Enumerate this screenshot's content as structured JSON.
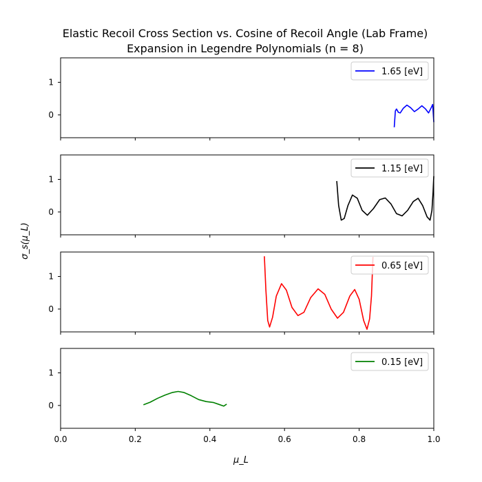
{
  "chart_data": {
    "type": "line",
    "title": [
      "Elastic Recoil Cross Section vs. Cosine of Recoil Angle (Lab Frame)",
      "Expansion in Legendre Polynomials (n = 8)"
    ],
    "xlabel": "μ_L",
    "ylabel": "σ_s(μ_L)",
    "xlim": [
      0.0,
      1.0
    ],
    "ylim": [
      -0.7,
      1.75
    ],
    "x_ticks": [
      "0.0",
      "0.2",
      "0.4",
      "0.6",
      "0.8",
      "1.0"
    ],
    "y_ticks": [
      "0",
      "1"
    ],
    "legend_placement": "upper right",
    "grid": false,
    "panels": [
      {
        "name": "1.65 [eV]",
        "color": "#0000ff",
        "points": [
          [
            0.894,
            -0.38
          ],
          [
            0.897,
            0.12
          ],
          [
            0.9,
            0.18
          ],
          [
            0.905,
            0.08
          ],
          [
            0.91,
            0.06
          ],
          [
            0.918,
            0.2
          ],
          [
            0.928,
            0.3
          ],
          [
            0.938,
            0.22
          ],
          [
            0.948,
            0.1
          ],
          [
            0.958,
            0.18
          ],
          [
            0.968,
            0.28
          ],
          [
            0.978,
            0.18
          ],
          [
            0.986,
            0.06
          ],
          [
            0.993,
            0.22
          ],
          [
            0.997,
            0.32
          ],
          [
            1.0,
            -0.22
          ]
        ]
      },
      {
        "name": "1.15 [eV]",
        "color": "#000000",
        "points": [
          [
            0.74,
            0.95
          ],
          [
            0.745,
            0.2
          ],
          [
            0.752,
            -0.25
          ],
          [
            0.76,
            -0.2
          ],
          [
            0.77,
            0.2
          ],
          [
            0.782,
            0.52
          ],
          [
            0.795,
            0.42
          ],
          [
            0.808,
            0.05
          ],
          [
            0.822,
            -0.1
          ],
          [
            0.838,
            0.1
          ],
          [
            0.855,
            0.38
          ],
          [
            0.87,
            0.43
          ],
          [
            0.885,
            0.25
          ],
          [
            0.9,
            -0.05
          ],
          [
            0.915,
            -0.12
          ],
          [
            0.93,
            0.05
          ],
          [
            0.945,
            0.32
          ],
          [
            0.958,
            0.42
          ],
          [
            0.97,
            0.2
          ],
          [
            0.982,
            -0.15
          ],
          [
            0.99,
            -0.25
          ],
          [
            0.995,
            0.05
          ],
          [
            0.998,
            0.6
          ],
          [
            1.0,
            1.1
          ]
        ]
      },
      {
        "name": "0.65 [eV]",
        "color": "#ff0000",
        "points": [
          [
            0.546,
            1.62
          ],
          [
            0.55,
            0.6
          ],
          [
            0.555,
            -0.35
          ],
          [
            0.56,
            -0.55
          ],
          [
            0.568,
            -0.25
          ],
          [
            0.578,
            0.4
          ],
          [
            0.592,
            0.78
          ],
          [
            0.605,
            0.58
          ],
          [
            0.62,
            0.05
          ],
          [
            0.636,
            -0.2
          ],
          [
            0.652,
            -0.1
          ],
          [
            0.67,
            0.35
          ],
          [
            0.69,
            0.62
          ],
          [
            0.708,
            0.45
          ],
          [
            0.725,
            0.0
          ],
          [
            0.742,
            -0.28
          ],
          [
            0.758,
            -0.1
          ],
          [
            0.775,
            0.4
          ],
          [
            0.788,
            0.6
          ],
          [
            0.8,
            0.3
          ],
          [
            0.812,
            -0.35
          ],
          [
            0.821,
            -0.62
          ],
          [
            0.828,
            -0.3
          ],
          [
            0.833,
            0.4
          ],
          [
            0.837,
            1.6
          ]
        ]
      },
      {
        "name": "0.15 [eV]",
        "color": "#008000",
        "points": [
          [
            0.222,
            0.02
          ],
          [
            0.24,
            0.1
          ],
          [
            0.26,
            0.22
          ],
          [
            0.28,
            0.32
          ],
          [
            0.3,
            0.4
          ],
          [
            0.315,
            0.43
          ],
          [
            0.33,
            0.4
          ],
          [
            0.35,
            0.3
          ],
          [
            0.37,
            0.18
          ],
          [
            0.39,
            0.12
          ],
          [
            0.41,
            0.09
          ],
          [
            0.425,
            0.03
          ],
          [
            0.437,
            -0.02
          ],
          [
            0.445,
            0.04
          ]
        ]
      }
    ]
  }
}
